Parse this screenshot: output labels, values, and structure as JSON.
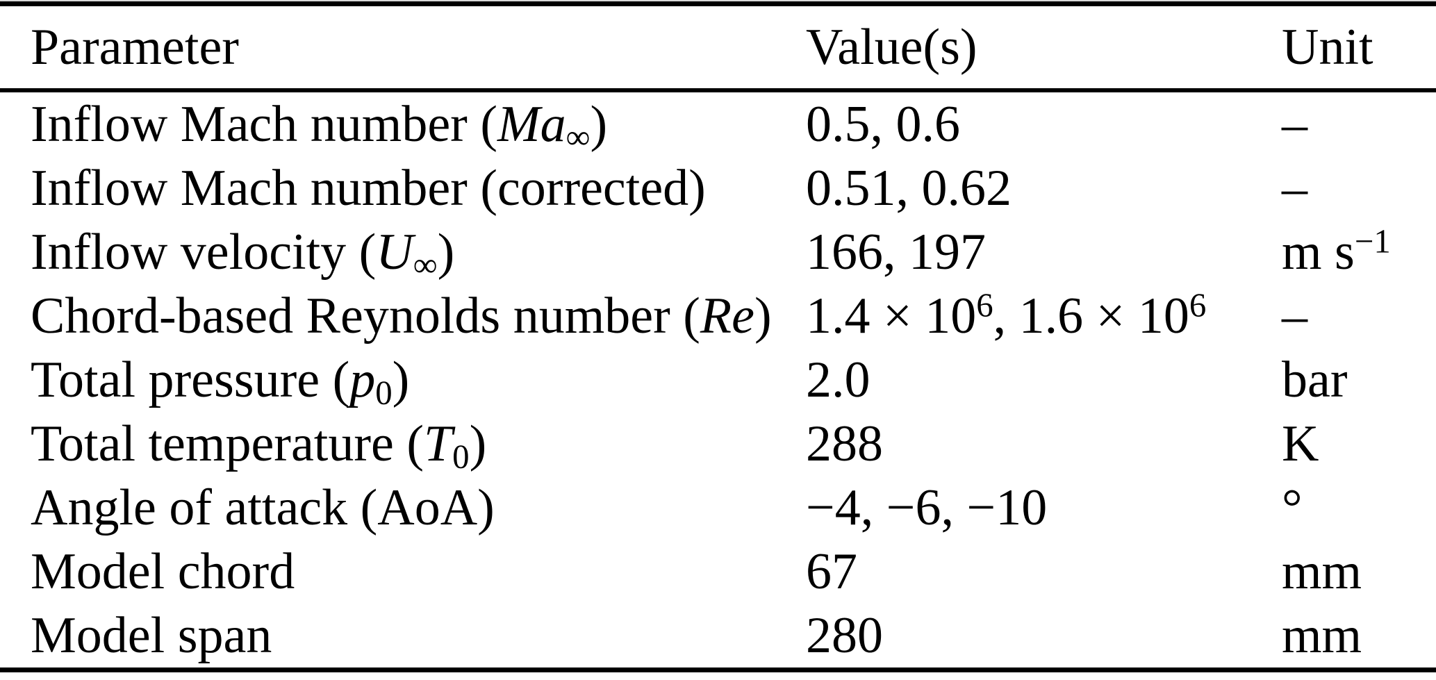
{
  "colors": {
    "text": "#000000",
    "background": "#ffffff",
    "rule": "#000000"
  },
  "table": {
    "columns": [
      {
        "key": "parameter",
        "label": "Parameter"
      },
      {
        "key": "values",
        "label": "Value(s)"
      },
      {
        "key": "unit",
        "label": "Unit"
      }
    ],
    "rows": [
      {
        "parameter": [
          {
            "t": "Inflow Mach number ("
          },
          {
            "t": "Ma",
            "s": "i"
          },
          {
            "t": "∞",
            "s": "sub"
          },
          {
            "t": ")"
          }
        ],
        "values": [
          {
            "t": "0.5, 0.6"
          }
        ],
        "unit": [
          {
            "t": "–"
          }
        ]
      },
      {
        "parameter": [
          {
            "t": "Inflow Mach number (corrected)"
          }
        ],
        "values": [
          {
            "t": "0.51, 0.62"
          }
        ],
        "unit": [
          {
            "t": "–"
          }
        ]
      },
      {
        "parameter": [
          {
            "t": "Inflow velocity ("
          },
          {
            "t": "U",
            "s": "i"
          },
          {
            "t": "∞",
            "s": "sub"
          },
          {
            "t": ")"
          }
        ],
        "values": [
          {
            "t": "166, 197"
          }
        ],
        "unit": [
          {
            "t": "m s"
          },
          {
            "t": "−1",
            "s": "sup"
          }
        ]
      },
      {
        "parameter": [
          {
            "t": "Chord-based Reynolds number ("
          },
          {
            "t": "Re",
            "s": "i"
          },
          {
            "t": ")"
          }
        ],
        "values": [
          {
            "t": "1.4 × 10"
          },
          {
            "t": "6",
            "s": "sup"
          },
          {
            "t": ", 1.6 × 10"
          },
          {
            "t": "6",
            "s": "sup"
          }
        ],
        "unit": [
          {
            "t": "–"
          }
        ]
      },
      {
        "parameter": [
          {
            "t": "Total pressure ("
          },
          {
            "t": "p",
            "s": "i"
          },
          {
            "t": "0",
            "s": "sub"
          },
          {
            "t": ")"
          }
        ],
        "values": [
          {
            "t": "2.0"
          }
        ],
        "unit": [
          {
            "t": "bar"
          }
        ]
      },
      {
        "parameter": [
          {
            "t": "Total temperature ("
          },
          {
            "t": "T",
            "s": "i"
          },
          {
            "t": "0",
            "s": "sub"
          },
          {
            "t": ")"
          }
        ],
        "values": [
          {
            "t": "288"
          }
        ],
        "unit": [
          {
            "t": "K"
          }
        ]
      },
      {
        "parameter": [
          {
            "t": "Angle of attack (AoA)"
          }
        ],
        "values": [
          {
            "t": "−4, −6, −10"
          }
        ],
        "unit": [
          {
            "t": "°"
          }
        ]
      },
      {
        "parameter": [
          {
            "t": "Model chord"
          }
        ],
        "values": [
          {
            "t": "67"
          }
        ],
        "unit": [
          {
            "t": "mm"
          }
        ]
      },
      {
        "parameter": [
          {
            "t": "Model span"
          }
        ],
        "values": [
          {
            "t": "280"
          }
        ],
        "unit": [
          {
            "t": "mm"
          }
        ]
      }
    ]
  }
}
